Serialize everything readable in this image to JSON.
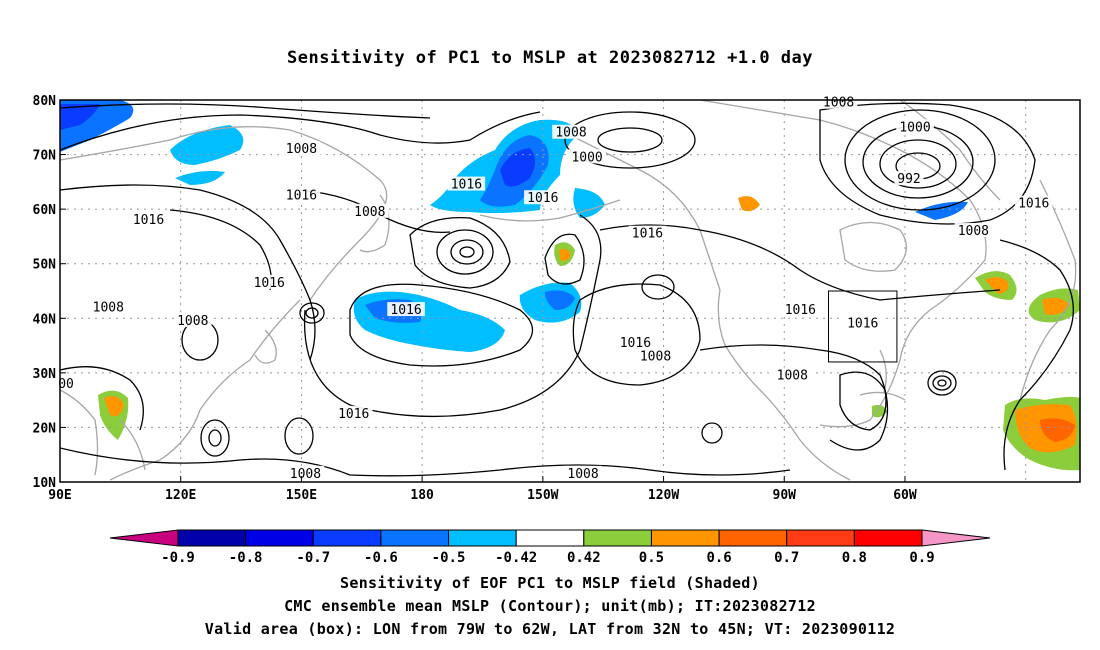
{
  "title": "Sensitivity of PC1 to MSLP at 2023082712 +1.0 day",
  "map": {
    "lat_labels": [
      "80N",
      "70N",
      "60N",
      "50N",
      "40N",
      "30N",
      "20N",
      "10N"
    ],
    "lon_labels": [
      "90E",
      "120E",
      "150E",
      "180",
      "150W",
      "120W",
      "90W",
      "60W"
    ],
    "contour_labels": [
      {
        "text": "1008",
        "lon": 150,
        "lat": 71
      },
      {
        "text": "1016",
        "lon": 150,
        "lat": 62.5
      },
      {
        "text": "1016",
        "lon": 112,
        "lat": 58
      },
      {
        "text": "1008",
        "lon": 167,
        "lat": 59.5
      },
      {
        "text": "1016",
        "lon": 191,
        "lat": 64.5
      },
      {
        "text": "1016",
        "lon": 210,
        "lat": 62
      },
      {
        "text": "1008",
        "lon": 217,
        "lat": 74
      },
      {
        "text": "1000",
        "lon": 221,
        "lat": 69.5
      },
      {
        "text": "1008",
        "lon": 283.5,
        "lat": 79.5
      },
      {
        "text": "1000",
        "lon": 302.5,
        "lat": 75
      },
      {
        "text": "992",
        "lon": 301,
        "lat": 65.5
      },
      {
        "text": "1008",
        "lon": 317,
        "lat": 56
      },
      {
        "text": "1016",
        "lon": 332,
        "lat": 61
      },
      {
        "text": "1016",
        "lon": 236,
        "lat": 55.5
      },
      {
        "text": "1016",
        "lon": 142,
        "lat": 46.5
      },
      {
        "text": "1008",
        "lon": 102,
        "lat": 42
      },
      {
        "text": "1008",
        "lon": 123,
        "lat": 39.5
      },
      {
        "text": "1016",
        "lon": 176,
        "lat": 41.5
      },
      {
        "text": "1016",
        "lon": 233,
        "lat": 35.5
      },
      {
        "text": "1008",
        "lon": 238,
        "lat": 33
      },
      {
        "text": "1016",
        "lon": 274,
        "lat": 41.5
      },
      {
        "text": "1016",
        "lon": 289.5,
        "lat": 39
      },
      {
        "text": "1008",
        "lon": 272,
        "lat": 29.5
      },
      {
        "text": "1016",
        "lon": 163,
        "lat": 22.5
      },
      {
        "text": "1008",
        "lon": 151,
        "lat": 11.5
      },
      {
        "text": "1008",
        "lon": 220,
        "lat": 11.5
      },
      {
        "text": "00",
        "lon": 91.5,
        "lat": 28
      }
    ],
    "valid_box": {
      "lon_min": -79,
      "lon_max": -62,
      "lat_min": 32,
      "lat_max": 45
    },
    "colors": {
      "frame": "#000000",
      "coast": "#a6a6a6",
      "contour": "#000000",
      "grid": "#999999"
    }
  },
  "colorbar": {
    "labels": [
      "-0.9",
      "-0.8",
      "-0.7",
      "-0.6",
      "-0.5",
      "-0.42",
      "0.42",
      "0.5",
      "0.6",
      "0.7",
      "0.8",
      "0.9"
    ],
    "colors": [
      "#c8007f",
      "#0000aa",
      "#0000e6",
      "#0a3cff",
      "#0a73ff",
      "#00beff",
      "#ffffff",
      "#8ccd3c",
      "#ff9600",
      "#ff6400",
      "#ff3c14",
      "#ff0000",
      "#f596c8"
    ]
  },
  "captions": [
    "Sensitivity of EOF PC1 to MSLP field (Shaded)",
    "CMC ensemble mean MSLP (Contour); unit(mb); IT:2023082712",
    "Valid area (box): LON from 79W to 62W, LAT from 32N to 45N; VT: 2023090112"
  ]
}
